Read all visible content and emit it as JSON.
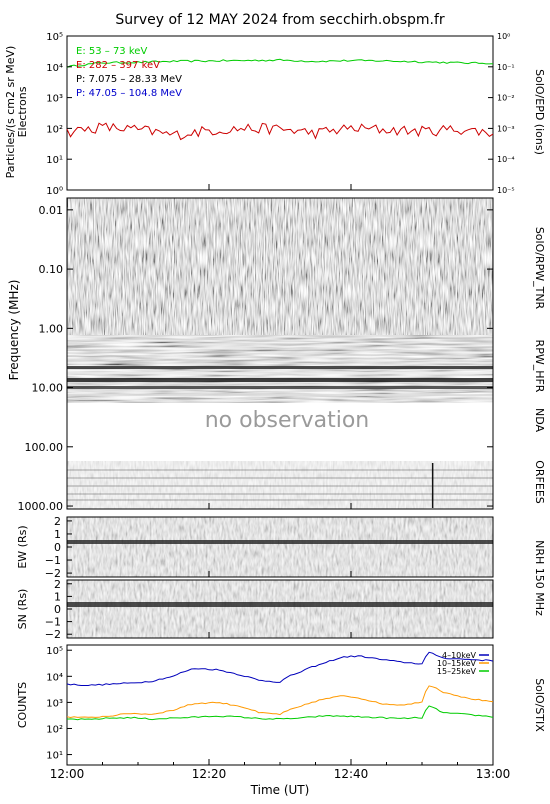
{
  "title": "Survey of 12 MAY 2024 from secchirh.obspm.fr",
  "no_observation": "no observation",
  "time_axis": {
    "label": "Time (UT)",
    "ticks": [
      {
        "t": 0,
        "label": "12:00"
      },
      {
        "t": 20,
        "label": "12:20"
      },
      {
        "t": 40,
        "label": "12:40"
      },
      {
        "t": 60,
        "label": "13:00"
      }
    ]
  },
  "panels": {
    "epd": {
      "left_label_1": "Particles/(s cm2 sr MeV)",
      "left_label_2": "Electrons",
      "right_label": "SolO/EPD (ions)",
      "left_ticks": [
        "10⁰",
        "10¹",
        "10²",
        "10³",
        "10⁴",
        "10⁵"
      ],
      "right_ticks": [
        "10⁻⁵",
        "10⁻⁴",
        "10⁻³",
        "10⁻²",
        "10⁻¹",
        "10⁰"
      ],
      "legend": [
        {
          "text": "E: 53 – 73 keV",
          "color": "#00cc00"
        },
        {
          "text": "E: 282 – 397 keV",
          "color": "#cc0000"
        },
        {
          "text": "P: 7.075 – 28.33 MeV",
          "color": "#000000"
        },
        {
          "text": "P: 47.05 – 104.8 MeV",
          "color": "#0000cc"
        }
      ]
    },
    "radio": {
      "left_label": "Frequency (MHz)",
      "ticks": [
        "0.01",
        "0.10",
        "1.00",
        "10.00",
        "100.00",
        "1000.00"
      ],
      "right_labels": [
        "SolO/RPW_TNR",
        "RPW_HFR",
        "NDA",
        "ORFEES"
      ]
    },
    "nrh_ew": {
      "left_label": "EW (Rs)",
      "ticks": [
        "2",
        "1",
        "0",
        "−1",
        "−2"
      ]
    },
    "nrh_sn": {
      "left_label": "SN (Rs)",
      "ticks": [
        "2",
        "1",
        "0",
        "−1",
        "−2"
      ]
    },
    "nrh_label": "NRH 150 MHz",
    "stix": {
      "left_label": "COUNTS",
      "right_label": "SolO/STIX",
      "ticks": [
        "10¹",
        "10²",
        "10³",
        "10⁴",
        "10⁵"
      ],
      "legend": [
        {
          "text": "4–10keV",
          "color": "#0000bb"
        },
        {
          "text": "10–15keV",
          "color": "#ff9900"
        },
        {
          "text": "15–25keV",
          "color": "#00cc00"
        }
      ]
    }
  },
  "chart_data": [
    {
      "type": "line",
      "title": "Survey of 12 MAY 2024 from secchirh.obspm.fr",
      "xlabel": "Time (UT)",
      "ylabel": "Particles/(s cm2 sr MeV) Electrons",
      "yscale": "log",
      "ylim": [
        1,
        100000
      ],
      "x": [
        0,
        5,
        10,
        15,
        20,
        25,
        30,
        35,
        40,
        45,
        50,
        55,
        60
      ],
      "series": [
        {
          "name": "E: 53 – 73 keV",
          "color": "#00cc00",
          "values": [
            10000,
            13500,
            14000,
            15000,
            15500,
            16000,
            16500,
            15000,
            16000,
            15500,
            14500,
            13500,
            13000
          ]
        },
        {
          "name": "E: 282 – 397 keV",
          "color": "#cc0000",
          "values": [
            75,
            110,
            90,
            60,
            85,
            100,
            95,
            70,
            100,
            90,
            80,
            95,
            70
          ]
        }
      ]
    },
    {
      "type": "line",
      "xlabel": "Time (UT)",
      "ylabel": "COUNTS",
      "yscale": "log",
      "ylim": [
        1,
        100000
      ],
      "x": [
        0,
        3,
        6,
        9,
        12,
        15,
        18,
        21,
        24,
        27,
        30,
        33,
        36,
        39,
        41,
        44,
        47,
        50,
        51,
        53,
        56,
        60
      ],
      "series": [
        {
          "name": "4–10keV",
          "color": "#0000bb",
          "values": [
            5000,
            4500,
            5000,
            5500,
            6500,
            10000,
            20000,
            18000,
            12000,
            7000,
            6000,
            15000,
            30000,
            55000,
            60000,
            45000,
            35000,
            30000,
            80000,
            50000,
            45000,
            40000
          ]
        },
        {
          "name": "10–15keV",
          "color": "#ff9900",
          "values": [
            280,
            260,
            300,
            380,
            350,
            500,
            900,
            1000,
            750,
            400,
            350,
            700,
            1300,
            1800,
            1500,
            900,
            800,
            1000,
            4500,
            2500,
            1500,
            1000
          ]
        },
        {
          "name": "15–25keV",
          "color": "#00cc00",
          "values": [
            230,
            220,
            250,
            260,
            230,
            250,
            270,
            300,
            280,
            240,
            230,
            250,
            300,
            300,
            280,
            260,
            240,
            260,
            700,
            400,
            350,
            280
          ]
        }
      ]
    }
  ]
}
